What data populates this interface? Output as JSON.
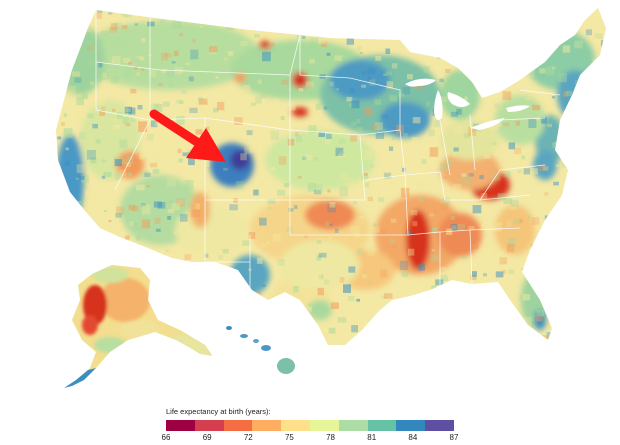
{
  "map": {
    "indicator_arrow": {
      "color": "#ff1a1a"
    }
  },
  "legend": {
    "title": "Life expectancy at birth (years):",
    "ticks": [
      "66",
      "69",
      "72",
      "75",
      "78",
      "81",
      "84",
      "87"
    ],
    "colors": [
      "#9e0142",
      "#d53e4f",
      "#f46d43",
      "#fdae61",
      "#fee08b",
      "#e6f598",
      "#abdda4",
      "#66c2a5",
      "#3288bd",
      "#5e4fa2"
    ]
  },
  "palette": {
    "low": "#d7301f",
    "mid_low": "#f39a5a",
    "mid": "#f5e79e",
    "mid_high": "#a9d99c",
    "high": "#3a8fc1",
    "very_high": "#3f3d9a"
  }
}
